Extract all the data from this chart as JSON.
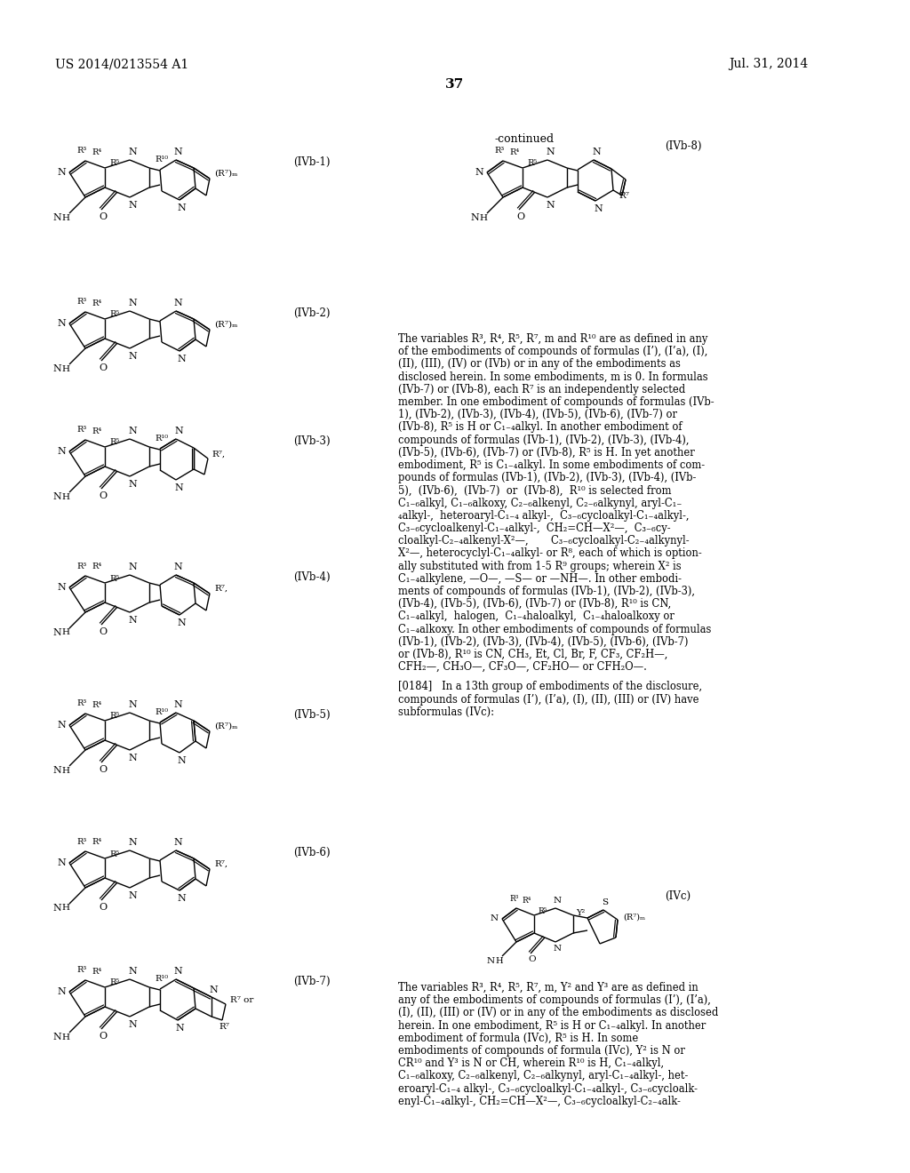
{
  "page_header_left": "US 2014/0213554 A1",
  "page_header_right": "Jul. 31, 2014",
  "page_number": "37",
  "continued_label": "-continued",
  "background_color": "#ffffff",
  "label_IVb1": "(IVb-1)",
  "label_IVb2": "(IVb-2)",
  "label_IVb3": "(IVb-3)",
  "label_IVb4": "(IVb-4)",
  "label_IVb5": "(IVb-5)",
  "label_IVb6": "(IVb-6)",
  "label_IVb7": "(IVb-7)",
  "label_IVb8": "(IVb-8)",
  "label_IVc": "(IVc)",
  "body_lines": [
    "The variables R³, R⁴, R⁵, R⁷, m and R¹⁰ are as defined in any",
    "of the embodiments of compounds of formulas (I’), (I’a), (I),",
    "(II), (III), (IV) or (IVb) or in any of the embodiments as",
    "disclosed herein. In some embodiments, m is 0. In formulas",
    "(IVb-7) or (IVb-8), each R⁷ is an independently selected",
    "member. In one embodiment of compounds of formulas (IVb-",
    "1), (IVb-2), (IVb-3), (IVb-4), (IVb-5), (IVb-6), (IVb-7) or",
    "(IVb-8), R⁵ is H or C₁₋₄alkyl. In another embodiment of",
    "compounds of formulas (IVb-1), (IVb-2), (IVb-3), (IVb-4),",
    "(IVb-5), (IVb-6), (IVb-7) or (IVb-8), R⁵ is H. In yet another",
    "embodiment, R⁵ is C₁₋₄alkyl. In some embodiments of com-",
    "pounds of formulas (IVb-1), (IVb-2), (IVb-3), (IVb-4), (IVb-",
    "5),  (IVb-6),  (IVb-7)  or  (IVb-8),  R¹⁰ is selected from",
    "C₁₋₆alkyl, C₁₋₆alkoxy, C₂₋₆alkenyl, C₂₋₆alkynyl, aryl-C₁₋",
    "₄alkyl-,  heteroaryl-C₁₋₄ alkyl-,  C₃₋₆cycloalkyl-C₁₋₄alkyl-,",
    "C₃₋₆cycloalkenyl-C₁₋₄alkyl-,  CH₂=CH—X²—,  C₃₋₆cy-",
    "cloalkyl-C₂₋₄alkenyl-X²—,       C₃₋₆cycloalkyl-C₂₋₄alkynyl-",
    "X²—, heterocyclyl-C₁₋₄alkyl- or R⁸, each of which is option-",
    "ally substituted with from 1-5 R⁹ groups; wherein X² is",
    "C₁₋₄alkylene, —O—, —S— or —NH—. In other embodi-",
    "ments of compounds of formulas (IVb-1), (IVb-2), (IVb-3),",
    "(IVb-4), (IVb-5), (IVb-6), (IVb-7) or (IVb-8), R¹⁰ is CN,",
    "C₁₋₄alkyl,  halogen,  C₁₋₄haloalkyl,  C₁₋₄haloalkoxy or",
    "C₁₋₄alkoxy. In other embodiments of compounds of formulas",
    "(IVb-1), (IVb-2), (IVb-3), (IVb-4), (IVb-5), (IVb-6), (IVb-7)",
    "or (IVb-8), R¹⁰ is CN, CH₃, Et, Cl, Br, F, CF₃, CF₂H—,",
    "CFH₂—, CH₃O—, CF₃O—, CF₂HO— or CFH₂O—."
  ],
  "para0184": "[0184]   In a 13th group of embodiments of the disclosure,",
  "para0184b": "compounds of formulas (I’), (I’a), (I), (II), (III) or (IV) have",
  "para0184c": "subformulas (IVc):",
  "IVc_body": [
    "The variables R³, R⁴, R⁵, R⁷, m, Y² and Y³ are as defined in",
    "any of the embodiments of compounds of formulas (I’), (I’a),",
    "(I), (II), (III) or (IV) or in any of the embodiments as disclosed",
    "herein. In one embodiment, R⁵ is H or C₁₋₄alkyl. In another",
    "embodiment of formula (IVc), R⁵ is H. In some",
    "embodiments of compounds of formula (IVc), Y² is N or",
    "CR¹⁰ and Y³ is N or CH, wherein R¹⁰ is H, C₁₋₄alkyl,",
    "C₁₋₆alkoxy, C₂₋₆alkenyl, C₂₋₆alkynyl, aryl-C₁₋₄alkyl-, het-",
    "eroaryl-C₁₋₄ alkyl-, C₃₋₆cycloalkyl-C₁₋₄alkyl-, C₃₋₆cycloalk-",
    "enyl-C₁₋₄alkyl-, CH₂=CH—X²—, C₃₋₆cycloalkyl-C₂₋₄alk-"
  ]
}
